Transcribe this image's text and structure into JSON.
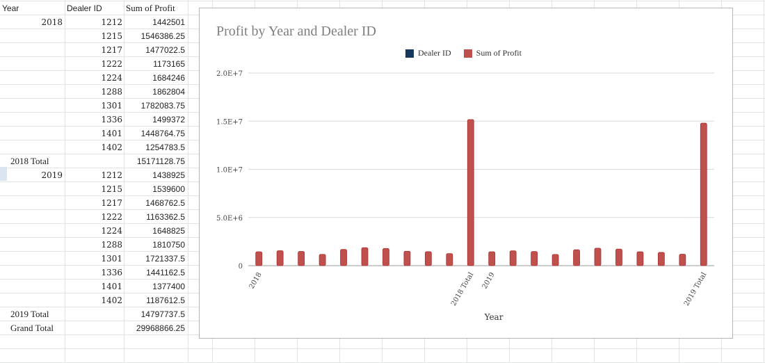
{
  "sheet": {
    "headers": {
      "year": "Year",
      "dealer": "Dealer ID",
      "profit": "Sum of Profit"
    },
    "rows": [
      {
        "year": "2018",
        "dealer": "1212",
        "profit": "1442501"
      },
      {
        "year": "",
        "dealer": "1215",
        "profit": "1546386.25"
      },
      {
        "year": "",
        "dealer": "1217",
        "profit": "1477022.5"
      },
      {
        "year": "",
        "dealer": "1222",
        "profit": "1173165"
      },
      {
        "year": "",
        "dealer": "1224",
        "profit": "1684246"
      },
      {
        "year": "",
        "dealer": "1288",
        "profit": "1862804"
      },
      {
        "year": "",
        "dealer": "1301",
        "profit": "1782083.75"
      },
      {
        "year": "",
        "dealer": "1336",
        "profit": "1499372"
      },
      {
        "year": "",
        "dealer": "1401",
        "profit": "1448764.75"
      },
      {
        "year": "",
        "dealer": "1402",
        "profit": "1254783.5"
      },
      {
        "year": "2018 Total",
        "dealer": "",
        "profit": "15171128.75"
      },
      {
        "year": "2019",
        "dealer": "1212",
        "profit": "1438925"
      },
      {
        "year": "",
        "dealer": "1215",
        "profit": "1539600"
      },
      {
        "year": "",
        "dealer": "1217",
        "profit": "1468762.5"
      },
      {
        "year": "",
        "dealer": "1222",
        "profit": "1163362.5"
      },
      {
        "year": "",
        "dealer": "1224",
        "profit": "1648825"
      },
      {
        "year": "",
        "dealer": "1288",
        "profit": "1810750"
      },
      {
        "year": "",
        "dealer": "1301",
        "profit": "1721337.5"
      },
      {
        "year": "",
        "dealer": "1336",
        "profit": "1441162.5"
      },
      {
        "year": "",
        "dealer": "1401",
        "profit": "1377400"
      },
      {
        "year": "",
        "dealer": "1402",
        "profit": "1187612.5"
      },
      {
        "year": "2019 Total",
        "dealer": "",
        "profit": "14797737.5"
      },
      {
        "year": "Grand Total",
        "dealer": "",
        "profit": "29968866.25"
      }
    ]
  },
  "chart_data": {
    "type": "bar",
    "title": "Profit by Year and Dealer ID",
    "xlabel": "Year",
    "ylabel": "",
    "ylim": [
      0,
      20000000
    ],
    "yticks": [
      "0",
      "5.0E+6",
      "1.0E+7",
      "1.5E+7",
      "2.0E+7"
    ],
    "ytick_values": [
      0,
      5000000,
      10000000,
      15000000,
      20000000
    ],
    "legend": [
      "Dealer ID",
      "Sum of Profit"
    ],
    "legend_colors": [
      "#17375e",
      "#c0504d"
    ],
    "legend_position": "top",
    "bar_color": "#c0504d",
    "grid": true,
    "categories": [
      "2018",
      "",
      "",
      "",
      "",
      "",
      "",
      "",
      "",
      "",
      "2018 Total",
      "2019",
      "",
      "",
      "",
      "",
      "",
      "",
      "",
      "",
      "",
      "2019 Total"
    ],
    "values": [
      1442501,
      1546386.25,
      1477022.5,
      1173165,
      1684246,
      1862804,
      1782083.75,
      1499372,
      1448764.75,
      1254783.5,
      15171128.75,
      1438925,
      1539600,
      1468762.5,
      1163362.5,
      1648825,
      1810750,
      1721337.5,
      1441162.5,
      1377400,
      1187612.5,
      14797737.5
    ]
  }
}
